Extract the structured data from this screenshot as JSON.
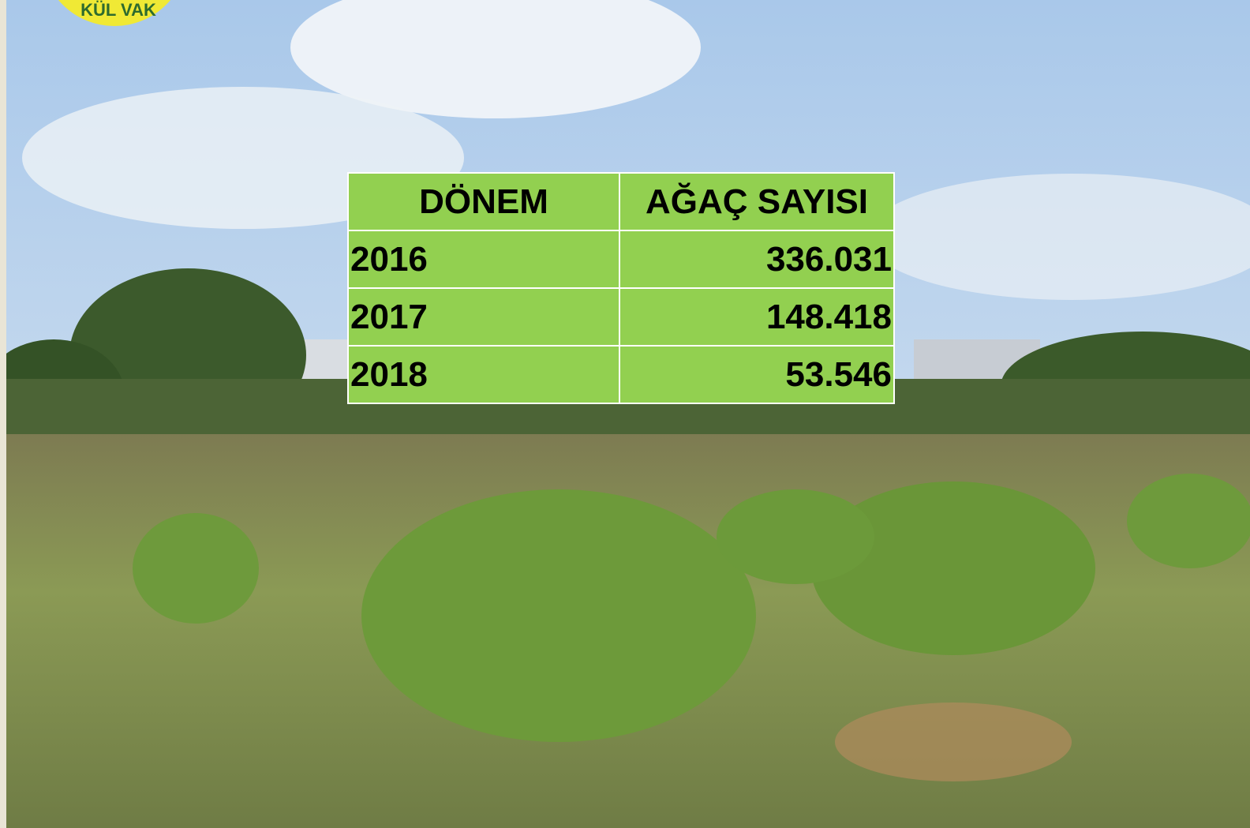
{
  "logo": {
    "text": "KÜL VAK"
  },
  "table": {
    "header": [
      "DÖNEM",
      "AĞAÇ SAYISI"
    ],
    "rows": [
      [
        "2016",
        "336.031"
      ],
      [
        "2017",
        "148.418"
      ],
      [
        "2018",
        "53.546"
      ]
    ]
  }
}
